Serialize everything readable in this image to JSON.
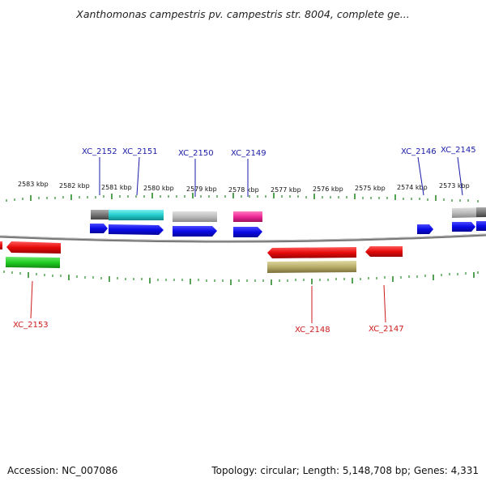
{
  "title": "Xanthomonas campestris pv. campestris str. 8004, complete ge...",
  "footer": {
    "accession": "Accession: NC_007086",
    "summary": "Topology: circular; Length: 5,148,708 bp; Genes: 4,331"
  },
  "colors": {
    "forward_cds": "#0a0ae6",
    "reverse_cds": "#e60a0a",
    "backbone": "#777777",
    "tick": "#2a8a2a"
  },
  "scale_labels": [
    "2583 kbp",
    "2582 kbp",
    "2581 kbp",
    "2580 kbp",
    "2579 kbp",
    "2578 kbp",
    "2577 kbp",
    "2576 kbp",
    "2575 kbp",
    "2574 kbp",
    "2573 kbp"
  ],
  "top_gene_labels": [
    "XC_2152",
    "XC_2151",
    "XC_2150",
    "XC_2149",
    "XC_2146",
    "XC_2145"
  ],
  "bottom_gene_labels": [
    "XC_2153",
    "XC_2148",
    "XC_2147"
  ]
}
